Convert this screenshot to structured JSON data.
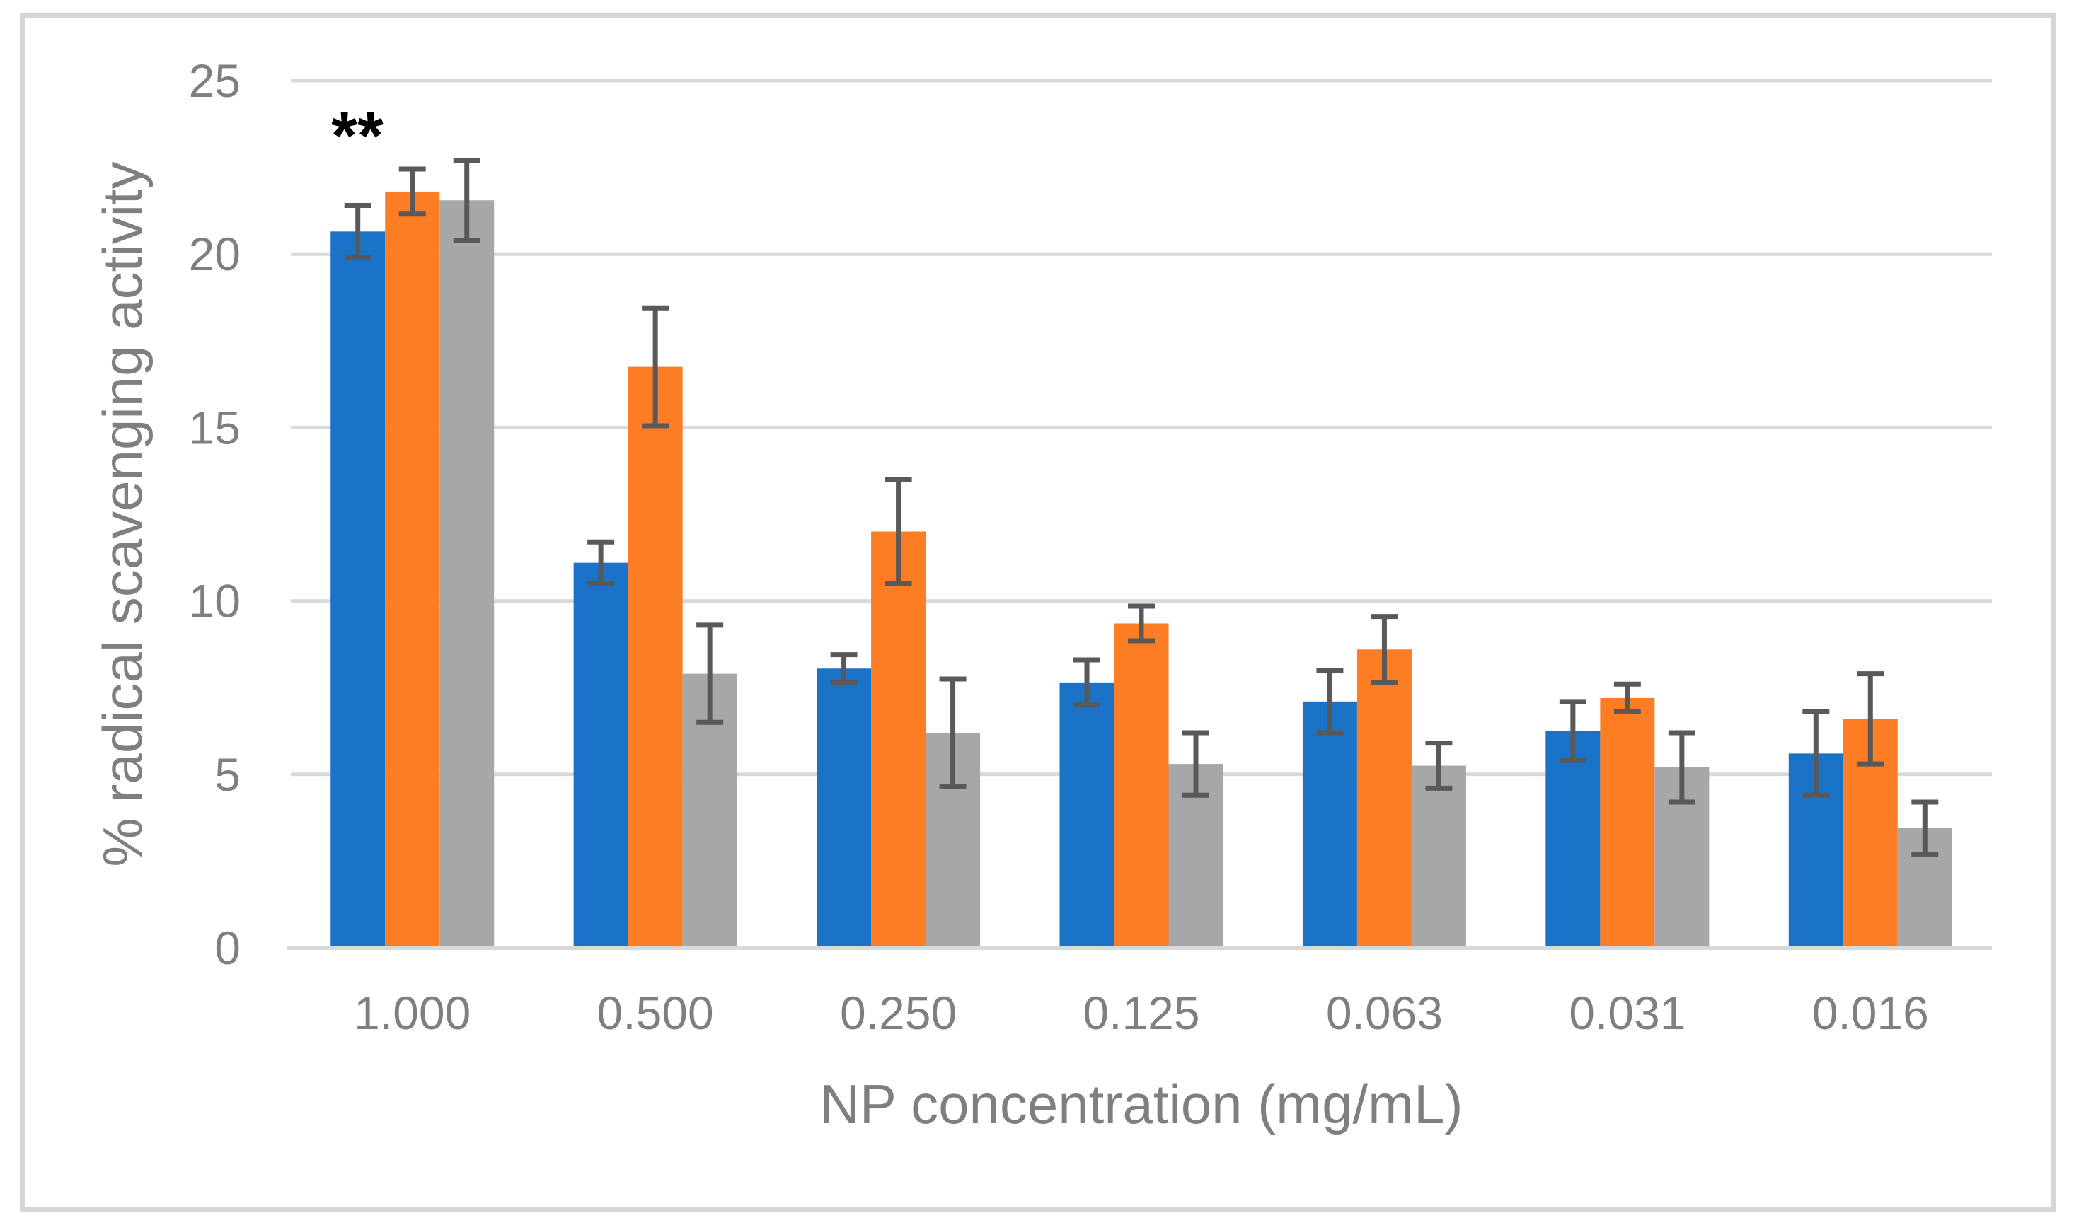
{
  "chart_data": {
    "type": "bar",
    "title": "",
    "xlabel": "NP concentration (mg/mL)",
    "ylabel": "% radical scavenging activity",
    "categories": [
      "1.000",
      "0.500",
      "0.250",
      "0.125",
      "0.063",
      "0.031",
      "0.016"
    ],
    "series": [
      {
        "name": "blue",
        "color": "#1B73C8",
        "values": [
          20.65,
          11.1,
          8.05,
          7.65,
          7.1,
          6.25,
          5.6
        ],
        "errors": [
          0.75,
          0.6,
          0.4,
          0.65,
          0.9,
          0.85,
          1.2
        ]
      },
      {
        "name": "orange",
        "color": "#FC7D23",
        "values": [
          21.8,
          16.75,
          12.0,
          9.35,
          8.6,
          7.2,
          6.6
        ],
        "errors": [
          0.65,
          1.7,
          1.5,
          0.5,
          0.95,
          0.4,
          1.3
        ]
      },
      {
        "name": "gray",
        "color": "#A7A7A7",
        "values": [
          21.55,
          7.9,
          6.2,
          5.3,
          5.25,
          5.2,
          3.45
        ],
        "errors": [
          1.15,
          1.4,
          1.55,
          0.9,
          0.65,
          1.0,
          0.75
        ]
      }
    ],
    "yticks": [
      0,
      5,
      10,
      15,
      20,
      25
    ],
    "ylim": [
      0,
      25
    ],
    "grid": true,
    "legend": false,
    "error_bars": true,
    "annotations": [
      {
        "text": "**",
        "category": "1.000",
        "note": "above first blue bar"
      }
    ]
  },
  "styles": {
    "background": "#FFFFFF",
    "border_color": "#D6D6D6",
    "gridline_color": "#D9D9D9",
    "axis_line_color": "#D9D9D9",
    "error_bar_color": "#595959",
    "tick_label_color": "#7F7F7F",
    "axis_title_color": "#7F7F7F",
    "annotation_color": "#000000"
  }
}
